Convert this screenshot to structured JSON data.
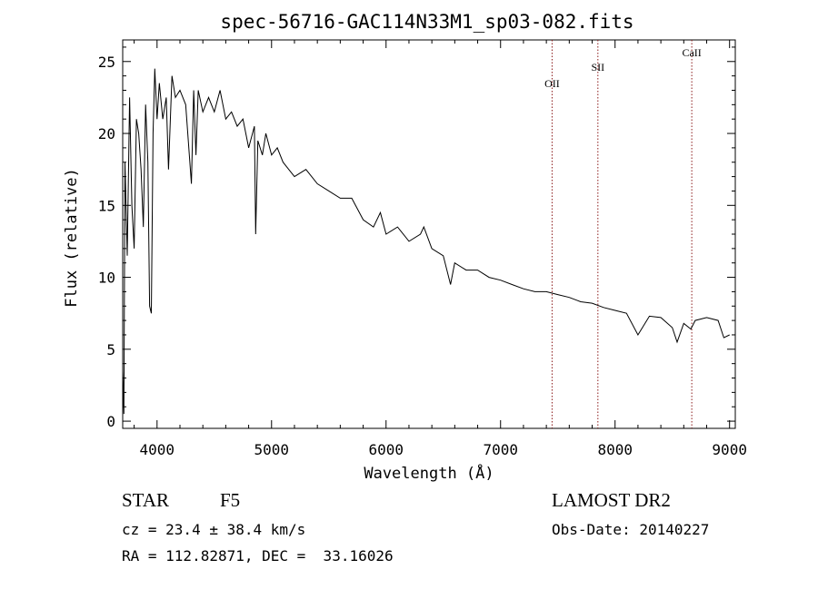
{
  "chart_data": {
    "type": "line",
    "title": "spec-56716-GAC114N33M1_sp03-082.fits",
    "xlabel": "Wavelength (Å)",
    "ylabel": "Flux (relative)",
    "xlim": [
      3700,
      9050
    ],
    "ylim": [
      -0.5,
      26.5
    ],
    "xticks": [
      4000,
      5000,
      6000,
      7000,
      8000,
      9000
    ],
    "yticks": [
      0,
      5,
      10,
      15,
      20,
      25
    ],
    "grid": false,
    "series": [
      {
        "x": [
          3700,
          3710,
          3720,
          3740,
          3760,
          3780,
          3800,
          3820,
          3840,
          3860,
          3880,
          3900,
          3920,
          3935,
          3950,
          3965,
          3980,
          4000,
          4020,
          4050,
          4080,
          4100,
          4130,
          4160,
          4200,
          4250,
          4300,
          4320,
          4340,
          4360,
          4400,
          4450,
          4500,
          4550,
          4600,
          4650,
          4700,
          4750,
          4800,
          4850,
          4861,
          4880,
          4920,
          4950,
          5000,
          5050,
          5100,
          5150,
          5200,
          5300,
          5400,
          5500,
          5600,
          5700,
          5800,
          5890,
          5950,
          6000,
          6100,
          6200,
          6300,
          6330,
          6400,
          6500,
          6563,
          6600,
          6700,
          6800,
          6900,
          7000,
          7100,
          7200,
          7300,
          7400,
          7500,
          7600,
          7700,
          7800,
          7900,
          8000,
          8100,
          8200,
          8300,
          8400,
          8500,
          8542,
          8600,
          8662,
          8700,
          8800,
          8900,
          8950,
          9000
        ],
        "y": [
          3.5,
          0.5,
          18.0,
          11.5,
          22.5,
          15.0,
          12.0,
          21.0,
          20.0,
          17.5,
          13.5,
          22.0,
          18.0,
          8.0,
          7.5,
          20.0,
          24.5,
          21.0,
          23.5,
          21.0,
          22.5,
          17.5,
          24.0,
          22.5,
          23.0,
          22.0,
          16.5,
          23.0,
          18.5,
          23.0,
          21.5,
          22.5,
          21.5,
          23.0,
          21.0,
          21.5,
          20.5,
          21.0,
          19.0,
          20.5,
          13.0,
          19.5,
          18.5,
          20.0,
          18.5,
          19.0,
          18.0,
          17.5,
          17.0,
          17.5,
          16.5,
          16.0,
          15.5,
          15.5,
          14.0,
          13.5,
          14.5,
          13.0,
          13.5,
          12.5,
          13.0,
          13.5,
          12.0,
          11.5,
          9.5,
          11.0,
          10.5,
          10.5,
          10.0,
          9.8,
          9.5,
          9.2,
          9.0,
          9.0,
          8.8,
          8.6,
          8.3,
          8.2,
          7.9,
          7.7,
          7.5,
          6.0,
          7.3,
          7.2,
          6.5,
          5.5,
          6.8,
          6.4,
          7.0,
          7.2,
          7.0,
          5.8,
          6.0
        ]
      }
    ],
    "lines": [
      {
        "label": "OII",
        "x": 7450
      },
      {
        "label": "SII",
        "x": 7850
      },
      {
        "label": "CaII",
        "x": 8670
      }
    ]
  },
  "footer": {
    "object_type": "STAR",
    "subclass": "F5",
    "cz": "cz = 23.4 ± 38.4 km/s",
    "radec": "RA = 112.82871, DEC =  33.16026",
    "survey": "LAMOST DR2",
    "obs_date": "Obs-Date: 20140227"
  }
}
